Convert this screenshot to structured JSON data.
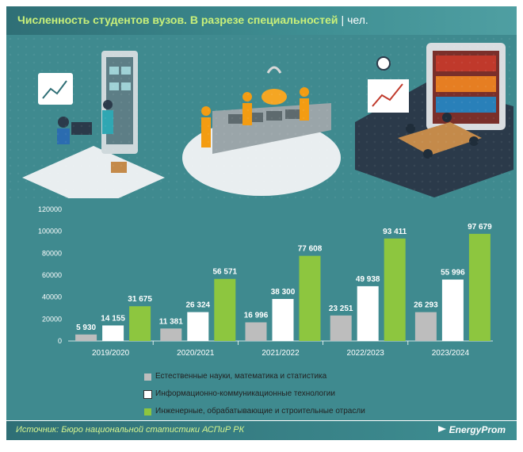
{
  "header": {
    "title": "Численность студентов вузов. В разрезе специальностей",
    "separator": "|",
    "unit": "чел."
  },
  "footer": {
    "source": "Источник: Бюро национальной статистики АСПиР РК",
    "brand": "EnergyProm"
  },
  "colors": {
    "gray": "#bdbdbd",
    "white": "#ffffff",
    "green": "#8dc63f",
    "chart_bg": "#3f8a8f",
    "accent_text": "#c9f07a"
  },
  "icons": [
    "chevron-icon"
  ],
  "chart_data": {
    "type": "bar",
    "categories": [
      "2019/2020",
      "2020/2021",
      "2021/2022",
      "2022/2023",
      "2023/2024"
    ],
    "series": [
      {
        "name": "Естественные науки, математика и статистика",
        "color": "#bdbdbd",
        "values": [
          5930,
          11381,
          16996,
          23251,
          26293
        ],
        "labels": [
          "5 930",
          "11 381",
          "16 996",
          "23 251",
          "26 293"
        ]
      },
      {
        "name": "Информационно-коммуникационные технологии",
        "color": "#ffffff",
        "values": [
          14155,
          26324,
          38300,
          49938,
          55996
        ],
        "labels": [
          "14 155",
          "26 324",
          "38 300",
          "49 938",
          "55 996"
        ]
      },
      {
        "name": "Инженерные, обрабатывающие и строительные отрасли",
        "color": "#8dc63f",
        "values": [
          31675,
          56571,
          77608,
          93411,
          97679
        ],
        "labels": [
          "31 675",
          "56 571",
          "77 608",
          "93 411",
          "97 679"
        ]
      }
    ],
    "yticks": [
      "0",
      "20000",
      "40000",
      "60000",
      "80000",
      "100000",
      "120000"
    ],
    "ylim": [
      0,
      120000
    ],
    "grid": false,
    "legend_position": "bottom"
  }
}
